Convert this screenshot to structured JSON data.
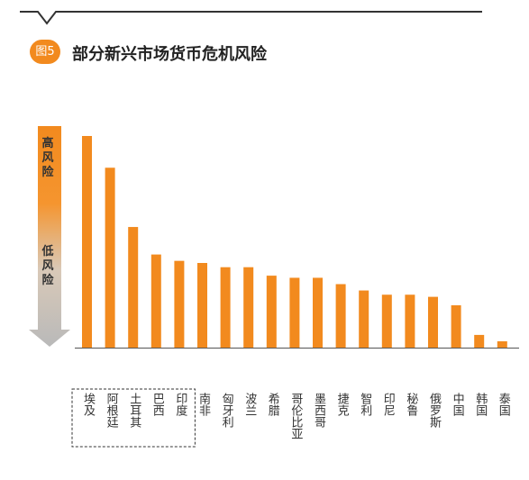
{
  "figure": {
    "badge": "图5",
    "title": "部分新兴市场货币危机风险"
  },
  "risk_scale": {
    "high_label": "高风险",
    "low_label": "低风险"
  },
  "colors": {
    "accent": "#f28a1e",
    "bar": "#f28a1e",
    "arrow_top": "#f28a1e",
    "arrow_bottom": "#b9b9b9",
    "axis": "#555555",
    "highlight_box": "#333333"
  },
  "chart_data": {
    "type": "bar",
    "title": "部分新兴市场货币危机风险",
    "categories": [
      "埃及",
      "阿根廷",
      "土耳其",
      "巴西",
      "印度",
      "南非",
      "匈牙利",
      "波兰",
      "希腊",
      "哥伦比亚",
      "墨西哥",
      "捷克",
      "智利",
      "印尼",
      "秘鲁",
      "俄罗斯",
      "中国",
      "韩国",
      "泰国"
    ],
    "values": [
      100,
      85,
      57,
      44,
      41,
      40,
      38,
      38,
      34,
      33,
      33,
      30,
      27,
      25,
      25,
      24,
      20,
      6,
      3
    ],
    "ylim": [
      0,
      100
    ],
    "y_axis": "高风险 → 低风险 (unlabeled scale)",
    "highlighted_categories": [
      "埃及",
      "阿根廷",
      "土耳其",
      "巴西",
      "印度"
    ],
    "grid": false,
    "legend": "none"
  }
}
